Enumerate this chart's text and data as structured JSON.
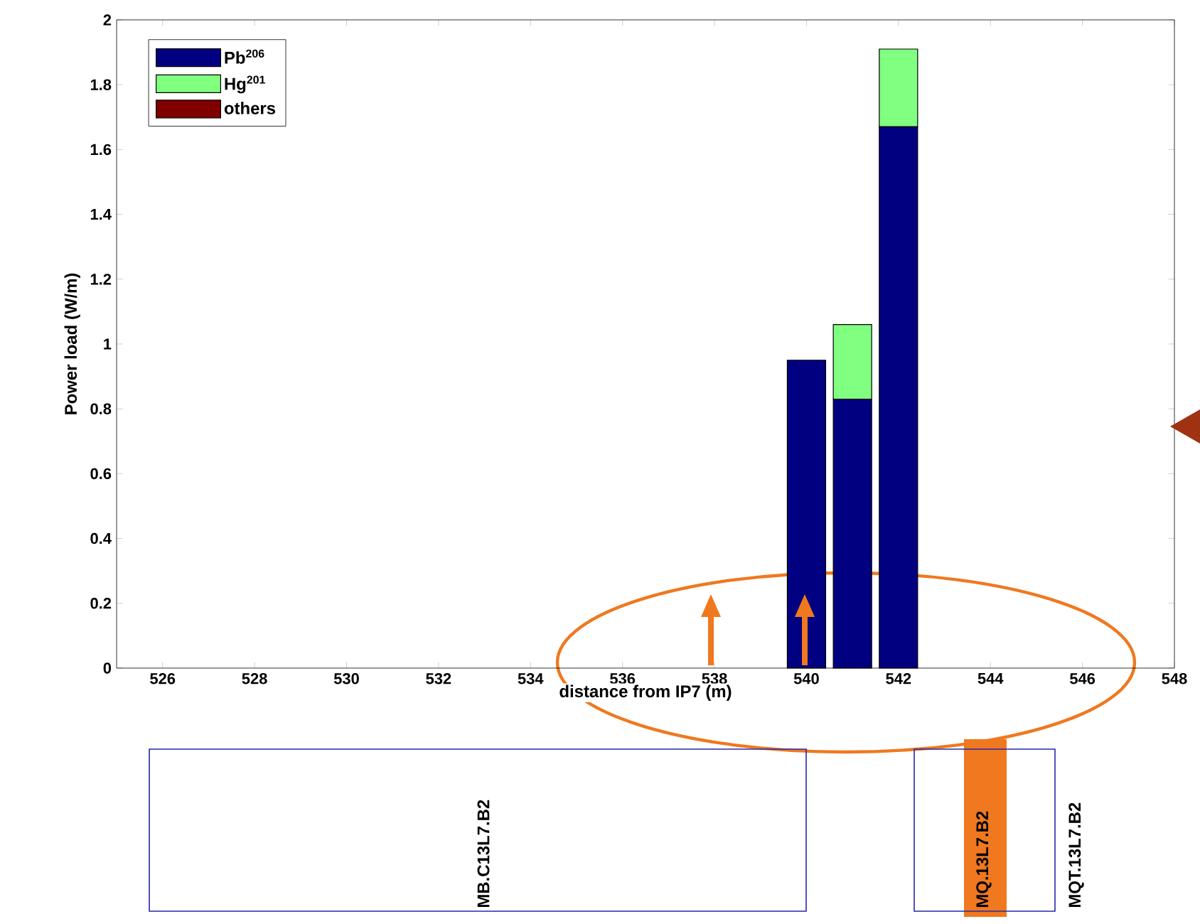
{
  "chart_data": {
    "type": "bar",
    "stacked": true,
    "xlabel": "distance from IP7 (m)",
    "ylabel": "Power load (W/m)",
    "x": [
      540,
      541,
      542
    ],
    "series": [
      {
        "name": "Pb$^{206}$",
        "color": "#000080",
        "values": [
          0.95,
          0.83,
          1.67
        ]
      },
      {
        "name": "Hg$^{201}$",
        "color": "#80ff80",
        "values": [
          0,
          0.23,
          0.24
        ]
      },
      {
        "name": "others",
        "color": "#800000",
        "values": [
          0,
          0,
          0
        ]
      }
    ],
    "xlim": [
      525,
      548
    ],
    "xticks": [
      526,
      528,
      530,
      532,
      534,
      536,
      538,
      540,
      542,
      544,
      546,
      548
    ],
    "ylim": [
      0,
      2
    ],
    "yticks": [
      0,
      0.2,
      0.4,
      0.6,
      0.8,
      1,
      1.2,
      1.4,
      1.6,
      1.8,
      2
    ],
    "legend": "top left",
    "grid": false,
    "annotations": [
      "MB.C13L7.B2",
      "MQ.13L7.B2",
      "MQT.13L7.B2"
    ]
  }
}
